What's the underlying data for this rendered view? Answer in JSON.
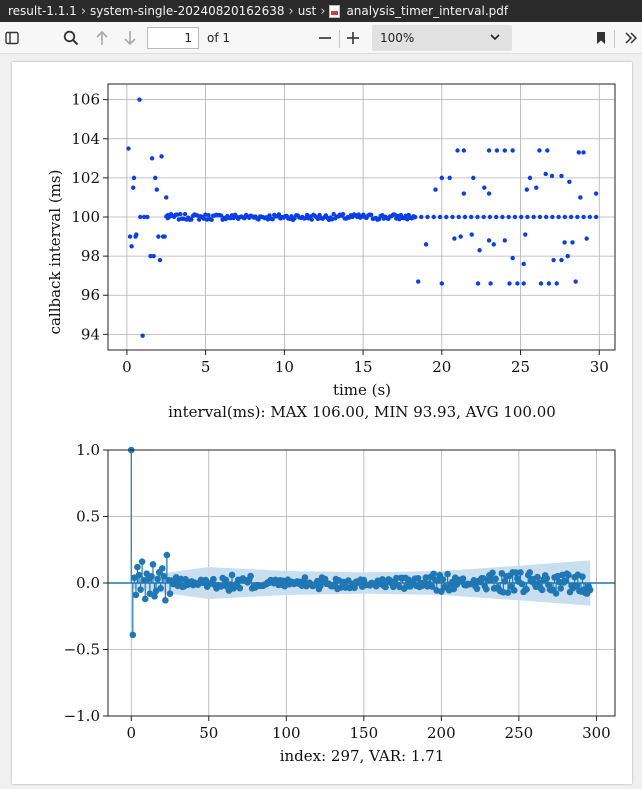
{
  "window": {
    "breadcrumb": [
      "result-1.1.1",
      "system-single-20240820162638",
      "ust",
      "analysis_timer_interval.pdf"
    ]
  },
  "toolbar": {
    "page_number": "1",
    "page_count_label": "of 1",
    "zoom_value": "100%",
    "icons": [
      "sidebar-toggle-icon",
      "search-icon",
      "arrow-up-icon",
      "arrow-down-icon",
      "minus-icon",
      "plus-icon",
      "bookmark-icon",
      "chevron-double-right-icon"
    ]
  },
  "colors": {
    "scatter": "#0a3fe6",
    "acf": "#1f77b4",
    "band": "#c6dcee"
  },
  "chart_data": [
    {
      "type": "scatter",
      "xlabel": "time (s)",
      "ylabel": "callback interval (ms)",
      "caption": "interval(ms): MAX 106.00, MIN 93.93, AVG 100.00",
      "xlim": [
        -1.2,
        31.0
      ],
      "ylim": [
        93.2,
        106.8
      ],
      "xticks": [
        0,
        5,
        10,
        15,
        20,
        25,
        30
      ],
      "yticks": [
        94,
        96,
        98,
        100,
        102,
        104,
        106
      ],
      "grid": true,
      "points": [
        [
          0.1,
          103.5
        ],
        [
          0.2,
          99.0
        ],
        [
          0.3,
          98.5
        ],
        [
          0.4,
          101.5
        ],
        [
          0.45,
          102.0
        ],
        [
          0.55,
          99.0
        ],
        [
          0.6,
          99.1
        ],
        [
          0.8,
          106.0
        ],
        [
          0.85,
          100.0
        ],
        [
          1.0,
          93.93
        ],
        [
          1.1,
          100.0
        ],
        [
          1.3,
          100.0
        ],
        [
          1.5,
          98.0
        ],
        [
          1.6,
          103.0
        ],
        [
          1.7,
          98.0
        ],
        [
          1.8,
          102.0
        ],
        [
          1.9,
          101.4
        ],
        [
          2.0,
          99.0
        ],
        [
          2.1,
          97.8
        ],
        [
          2.2,
          103.1
        ],
        [
          2.3,
          99.0
        ],
        [
          2.4,
          99.0
        ],
        [
          2.5,
          101.0
        ],
        [
          2.6,
          100.1
        ],
        [
          21.0,
          103.4
        ],
        [
          21.4,
          103.4
        ],
        [
          23.0,
          103.4
        ],
        [
          23.5,
          103.4
        ],
        [
          24.0,
          103.4
        ],
        [
          24.5,
          103.4
        ],
        [
          26.2,
          103.4
        ],
        [
          26.7,
          103.4
        ],
        [
          28.7,
          103.3
        ],
        [
          29.0,
          103.3
        ],
        [
          20.0,
          102.0
        ],
        [
          20.5,
          102.0
        ],
        [
          22.0,
          102.0
        ],
        [
          25.6,
          102.0
        ],
        [
          26.6,
          102.2
        ],
        [
          27.0,
          102.1
        ],
        [
          27.6,
          102.1
        ],
        [
          28.1,
          101.8
        ],
        [
          19.6,
          101.4
        ],
        [
          21.4,
          101.2
        ],
        [
          22.7,
          101.5
        ],
        [
          23.0,
          101.2
        ],
        [
          25.4,
          101.4
        ],
        [
          26.0,
          101.5
        ],
        [
          28.8,
          101.0
        ],
        [
          29.8,
          101.2
        ],
        [
          20.8,
          98.9
        ],
        [
          21.2,
          99.0
        ],
        [
          22.4,
          98.3
        ],
        [
          23.0,
          98.8
        ],
        [
          23.3,
          98.6
        ],
        [
          24.0,
          98.8
        ],
        [
          25.3,
          99.1
        ],
        [
          27.8,
          98.7
        ],
        [
          28.3,
          98.7
        ],
        [
          29.2,
          98.9
        ],
        [
          18.5,
          96.7
        ],
        [
          20.0,
          96.6
        ],
        [
          22.3,
          96.6
        ],
        [
          23.1,
          96.6
        ],
        [
          24.3,
          96.6
        ],
        [
          24.8,
          96.6
        ],
        [
          25.2,
          96.6
        ],
        [
          26.3,
          96.6
        ],
        [
          26.8,
          96.6
        ],
        [
          27.3,
          96.6
        ],
        [
          28.5,
          96.7
        ],
        [
          19.0,
          98.6
        ],
        [
          21.9,
          99.1
        ],
        [
          24.5,
          97.9
        ],
        [
          25.2,
          97.6
        ],
        [
          27.1,
          97.8
        ],
        [
          27.6,
          97.8
        ],
        [
          28.0,
          98.0
        ]
      ],
      "baseline_series": {
        "value": 100.0,
        "x_start": 2.5,
        "x_end": 18.3,
        "jitter": 0.15,
        "count": 160
      },
      "late_series": {
        "value": 100.0,
        "x_start": 18.3,
        "x_end": 29.8,
        "count": 30
      }
    },
    {
      "type": "line",
      "subtype": "autocorrelation (stem)",
      "caption": "index: 297, VAR: 1.71",
      "xlim": [
        -15,
        312
      ],
      "ylim": [
        -1.0,
        1.0
      ],
      "xticks": [
        0,
        50,
        100,
        150,
        200,
        250,
        300
      ],
      "yticks": [
        -1.0,
        -0.5,
        0.0,
        0.5,
        1.0
      ],
      "ytick_labels": [
        "−1.0",
        "−0.5",
        "0.0",
        "0.5",
        "1.0"
      ],
      "grid": true,
      "n_lags": 297,
      "acf_head": [
        1.0,
        -0.39,
        0.04,
        -0.09,
        0.12,
        0.06,
        -0.05,
        0.16,
        0.02,
        -0.12,
        0.07,
        0.03,
        -0.08,
        0.05,
        0.14,
        -0.1,
        -0.06,
        0.03,
        0.08,
        -0.04,
        0.11,
        0.05,
        -0.13,
        0.21,
        0.02,
        -0.08
      ],
      "confidence_band": [
        [
          0,
          0.04
        ],
        [
          50,
          0.12
        ],
        [
          100,
          0.09
        ],
        [
          150,
          0.08
        ],
        [
          200,
          0.09
        ],
        [
          250,
          0.13
        ],
        [
          296,
          0.17
        ]
      ]
    }
  ]
}
